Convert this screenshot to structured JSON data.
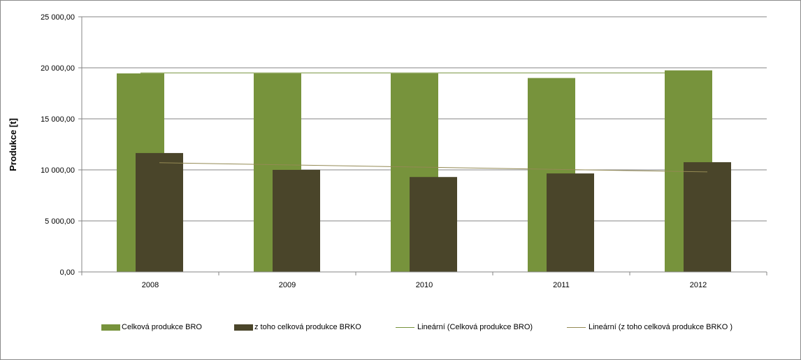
{
  "chart_data": {
    "type": "bar",
    "title": "",
    "xlabel": "",
    "ylabel": "Produkce [t]",
    "categories": [
      "2008",
      "2009",
      "2010",
      "2011",
      "2012"
    ],
    "ylim": [
      0,
      25000
    ],
    "yticks": [
      0,
      5000,
      10000,
      15000,
      20000,
      25000
    ],
    "ytick_labels": [
      "0,00",
      "5 000,00",
      "10 000,00",
      "15 000,00",
      "20 000,00",
      "25 000,00"
    ],
    "grid": true,
    "legend_position": "bottom",
    "series": [
      {
        "name": "Celková produkce BRO",
        "values": [
          19450,
          19450,
          19450,
          19000,
          19750
        ],
        "color": "#77933C"
      },
      {
        "name": "z toho  celková produkce BRKO",
        "values": [
          11650,
          10000,
          9300,
          9650,
          10750
        ],
        "color": "#4A452A"
      }
    ],
    "trendlines": [
      {
        "name": "Lineární (Celková produkce BRO)",
        "series_index": 0,
        "start": 19500,
        "end": 19500,
        "color": "#77933C"
      },
      {
        "name": "Lineární (z toho  celková produkce BRKO )",
        "series_index": 1,
        "start": 10700,
        "end": 9800,
        "color": "#948A54"
      }
    ]
  }
}
